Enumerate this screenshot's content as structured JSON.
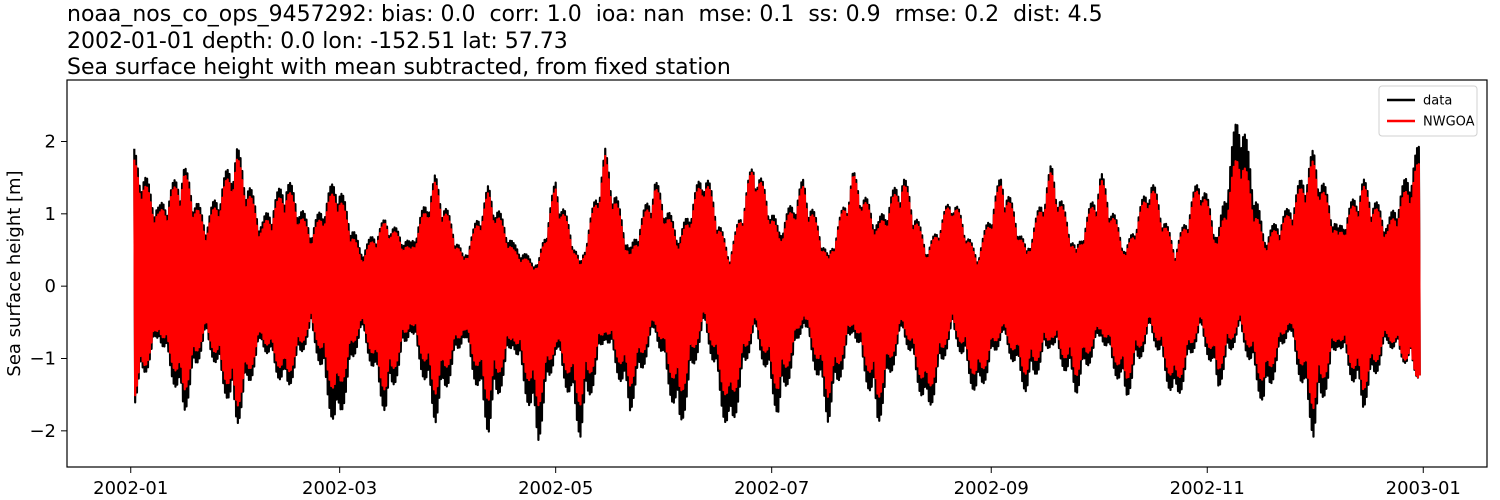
{
  "chart_data": {
    "type": "line",
    "title_lines": [
      "noaa_nos_co_ops_9457292: bias: 0.0  corr: 1.0  ioa: nan  mse: 0.1  ss: 0.9  rmse: 0.2  dist: 4.5",
      "2002-01-01 depth: 0.0 lon: -152.51 lat: 57.73",
      "Sea surface height with mean subtracted, from fixed station"
    ],
    "xlabel": "",
    "ylabel": "Sea surface height [m]",
    "xlim": [
      "2001-12-14",
      "2003-01-19"
    ],
    "ylim": [
      -2.5,
      2.85
    ],
    "x_ticks": [
      "2002-01",
      "2002-03",
      "2002-05",
      "2002-07",
      "2002-09",
      "2002-11",
      "2003-01"
    ],
    "y_ticks": [
      {
        "value": 2,
        "label": "2"
      },
      {
        "value": 1,
        "label": "1"
      },
      {
        "value": 0,
        "label": "0"
      },
      {
        "value": -1,
        "label": "−1"
      },
      {
        "value": -2,
        "label": "−2"
      }
    ],
    "grid": false,
    "legend_position": "top-right",
    "series": [
      {
        "name": "data",
        "color": "#000000",
        "envelope": {
          "x": [
            "2002-01-02",
            "2002-01-09",
            "2002-01-16",
            "2002-01-22",
            "2002-01-31",
            "2002-02-07",
            "2002-02-14",
            "2002-02-21",
            "2002-02-28",
            "2002-03-07",
            "2002-03-14",
            "2002-03-21",
            "2002-03-28",
            "2002-04-05",
            "2002-04-12",
            "2002-04-19",
            "2002-04-26",
            "2002-05-01",
            "2002-05-08",
            "2002-05-15",
            "2002-05-22",
            "2002-05-29",
            "2002-06-05",
            "2002-06-12",
            "2002-06-19",
            "2002-06-26",
            "2002-07-03",
            "2002-07-10",
            "2002-07-17",
            "2002-07-24",
            "2002-07-31",
            "2002-08-07",
            "2002-08-14",
            "2002-08-21",
            "2002-08-28",
            "2002-09-04",
            "2002-09-11",
            "2002-09-18",
            "2002-09-25",
            "2002-10-02",
            "2002-10-09",
            "2002-10-16",
            "2002-10-23",
            "2002-10-30",
            "2002-11-04",
            "2002-11-10",
            "2002-11-17",
            "2002-11-24",
            "2002-12-01",
            "2002-12-08",
            "2002-12-15",
            "2002-12-22",
            "2002-12-31"
          ],
          "upper": [
            1.9,
            1.1,
            1.7,
            0.9,
            1.95,
            0.9,
            1.55,
            0.8,
            1.55,
            0.5,
            0.95,
            0.6,
            1.55,
            0.4,
            1.4,
            0.6,
            0.3,
            1.5,
            0.3,
            1.9,
            0.5,
            1.5,
            0.7,
            1.7,
            0.4,
            1.8,
            0.8,
            1.5,
            0.4,
            1.6,
            0.9,
            1.6,
            0.5,
            1.3,
            0.4,
            1.6,
            0.5,
            1.7,
            0.5,
            1.6,
            0.5,
            1.55,
            0.5,
            1.6,
            0.7,
            2.6,
            0.7,
            1.1,
            1.9,
            0.8,
            1.5,
            0.9,
            2.0
          ],
          "lower": [
            -1.65,
            -0.7,
            -1.8,
            -0.7,
            -1.95,
            -0.8,
            -1.5,
            -0.6,
            -2.1,
            -0.6,
            -1.8,
            -0.6,
            -1.9,
            -0.7,
            -2.05,
            -0.8,
            -2.2,
            -0.9,
            -2.1,
            -0.7,
            -1.75,
            -0.6,
            -2.05,
            -0.5,
            -2.2,
            -0.6,
            -1.85,
            -0.5,
            -1.9,
            -0.6,
            -1.95,
            -0.6,
            -1.85,
            -0.6,
            -1.6,
            -0.7,
            -1.5,
            -0.8,
            -1.5,
            -0.7,
            -1.6,
            -0.6,
            -1.7,
            -0.6,
            -1.45,
            -0.6,
            -1.7,
            -0.6,
            -2.1,
            -0.8,
            -1.7,
            -0.8,
            -1.3
          ]
        }
      },
      {
        "name": "NWGOA",
        "color": "#ff0000",
        "envelope": {
          "x": [
            "2002-01-02",
            "2002-01-09",
            "2002-01-16",
            "2002-01-22",
            "2002-01-31",
            "2002-02-07",
            "2002-02-14",
            "2002-02-21",
            "2002-02-28",
            "2002-03-07",
            "2002-03-14",
            "2002-03-21",
            "2002-03-28",
            "2002-04-05",
            "2002-04-12",
            "2002-04-19",
            "2002-04-26",
            "2002-05-01",
            "2002-05-08",
            "2002-05-15",
            "2002-05-22",
            "2002-05-29",
            "2002-06-05",
            "2002-06-12",
            "2002-06-19",
            "2002-06-26",
            "2002-07-03",
            "2002-07-10",
            "2002-07-17",
            "2002-07-24",
            "2002-07-31",
            "2002-08-07",
            "2002-08-14",
            "2002-08-21",
            "2002-08-28",
            "2002-09-04",
            "2002-09-11",
            "2002-09-18",
            "2002-09-25",
            "2002-10-02",
            "2002-10-09",
            "2002-10-16",
            "2002-10-23",
            "2002-10-30",
            "2002-11-04",
            "2002-11-10",
            "2002-11-17",
            "2002-11-24",
            "2002-12-01",
            "2002-12-08",
            "2002-12-15",
            "2002-12-22",
            "2002-12-31"
          ],
          "upper": [
            1.75,
            1.0,
            1.6,
            0.8,
            1.8,
            0.8,
            1.4,
            0.7,
            1.4,
            0.4,
            0.9,
            0.5,
            1.45,
            0.35,
            1.3,
            0.5,
            0.25,
            1.4,
            0.25,
            1.8,
            0.4,
            1.4,
            0.6,
            1.6,
            0.35,
            1.75,
            0.7,
            1.4,
            0.35,
            1.55,
            0.8,
            1.5,
            0.45,
            1.25,
            0.35,
            1.5,
            0.45,
            1.6,
            0.45,
            1.5,
            0.45,
            1.45,
            0.45,
            1.5,
            0.6,
            2.0,
            0.6,
            1.0,
            1.75,
            0.7,
            1.4,
            0.8,
            1.75
          ],
          "lower": [
            -1.55,
            -0.6,
            -1.5,
            -0.6,
            -1.7,
            -0.7,
            -1.3,
            -0.5,
            -1.6,
            -0.5,
            -1.5,
            -0.5,
            -1.5,
            -0.6,
            -1.6,
            -0.7,
            -1.7,
            -0.8,
            -1.65,
            -0.6,
            -1.4,
            -0.5,
            -1.6,
            -0.4,
            -1.75,
            -0.5,
            -1.5,
            -0.4,
            -1.55,
            -0.5,
            -1.6,
            -0.5,
            -1.55,
            -0.5,
            -1.35,
            -0.6,
            -1.25,
            -0.7,
            -1.25,
            -0.6,
            -1.35,
            -0.5,
            -1.45,
            -0.5,
            -1.2,
            -0.5,
            -1.4,
            -0.5,
            -1.7,
            -0.7,
            -1.45,
            -0.7,
            -1.3
          ]
        }
      }
    ]
  }
}
